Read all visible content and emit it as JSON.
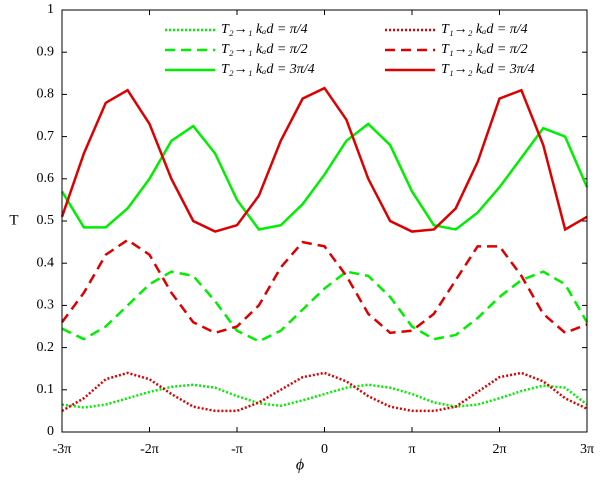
{
  "chart_data": {
    "type": "line",
    "x_label": "ϕ",
    "y_label": "T",
    "xlim": [
      -9.4248,
      9.4248
    ],
    "ylim": [
      0,
      1
    ],
    "xticks": [
      {
        "value": -9.4248,
        "label": "-3π"
      },
      {
        "value": -6.2832,
        "label": "-2π"
      },
      {
        "value": -3.1416,
        "label": "-π"
      },
      0,
      {
        "value": 3.1416,
        "label": "π"
      },
      {
        "value": 6.2832,
        "label": "2π"
      },
      {
        "value": 9.4248,
        "label": "3π"
      }
    ],
    "yticks": [
      0,
      0.1,
      0.2,
      0.3,
      0.4,
      0.5,
      0.6,
      0.7,
      0.8,
      0.9,
      1
    ],
    "x": [
      -9.4248,
      -8.6394,
      -7.854,
      -7.0686,
      -6.2832,
      -5.4978,
      -4.7124,
      -3.927,
      -3.1416,
      -2.3562,
      -1.5708,
      -0.7854,
      0,
      0.7854,
      1.5708,
      2.3562,
      3.1416,
      3.927,
      4.7124,
      5.4978,
      6.2832,
      7.0686,
      7.854,
      8.6394,
      9.4248
    ],
    "series": [
      {
        "name": "T₂→₁ kₐd = π/4",
        "color": "#00ee00",
        "line_style": "dotted",
        "values": [
          0.065,
          0.058,
          0.065,
          0.08,
          0.095,
          0.107,
          0.112,
          0.105,
          0.085,
          0.068,
          0.062,
          0.075,
          0.09,
          0.105,
          0.112,
          0.105,
          0.09,
          0.07,
          0.06,
          0.065,
          0.08,
          0.097,
          0.11,
          0.105,
          0.065
        ]
      },
      {
        "name": "T₁→₂ kₐd = π/4",
        "color": "#dd0000",
        "line_style": "dotted",
        "values": [
          0.05,
          0.08,
          0.125,
          0.14,
          0.125,
          0.09,
          0.06,
          0.05,
          0.05,
          0.07,
          0.1,
          0.13,
          0.14,
          0.12,
          0.085,
          0.06,
          0.05,
          0.05,
          0.06,
          0.095,
          0.13,
          0.14,
          0.12,
          0.08,
          0.055
        ]
      },
      {
        "name": "T₂→₁ kₐd = π/2",
        "color": "#00ee00",
        "line_style": "dashed",
        "values": [
          0.245,
          0.22,
          0.25,
          0.3,
          0.35,
          0.38,
          0.37,
          0.31,
          0.24,
          0.215,
          0.24,
          0.29,
          0.34,
          0.38,
          0.37,
          0.32,
          0.25,
          0.22,
          0.23,
          0.27,
          0.32,
          0.36,
          0.38,
          0.35,
          0.26
        ]
      },
      {
        "name": "T₁→₂ kₐd = π/2",
        "color": "#dd0000",
        "line_style": "dashed",
        "values": [
          0.26,
          0.33,
          0.42,
          0.455,
          0.42,
          0.33,
          0.26,
          0.235,
          0.25,
          0.3,
          0.39,
          0.45,
          0.44,
          0.37,
          0.28,
          0.235,
          0.24,
          0.28,
          0.36,
          0.44,
          0.44,
          0.37,
          0.28,
          0.235,
          0.255
        ]
      },
      {
        "name": "T₂→₁ kₐd = 3π/4",
        "color": "#00ee00",
        "line_style": "solid",
        "values": [
          0.57,
          0.485,
          0.485,
          0.53,
          0.6,
          0.69,
          0.725,
          0.66,
          0.55,
          0.48,
          0.49,
          0.54,
          0.61,
          0.69,
          0.73,
          0.68,
          0.57,
          0.49,
          0.48,
          0.52,
          0.58,
          0.65,
          0.72,
          0.7,
          0.58
        ]
      },
      {
        "name": "T₁→₂ kₐd = 3π/4",
        "color": "#dd0000",
        "line_style": "solid",
        "values": [
          0.51,
          0.66,
          0.78,
          0.81,
          0.73,
          0.6,
          0.5,
          0.475,
          0.49,
          0.56,
          0.69,
          0.79,
          0.815,
          0.74,
          0.6,
          0.5,
          0.475,
          0.48,
          0.53,
          0.64,
          0.79,
          0.81,
          0.68,
          0.48,
          0.51
        ]
      }
    ]
  }
}
